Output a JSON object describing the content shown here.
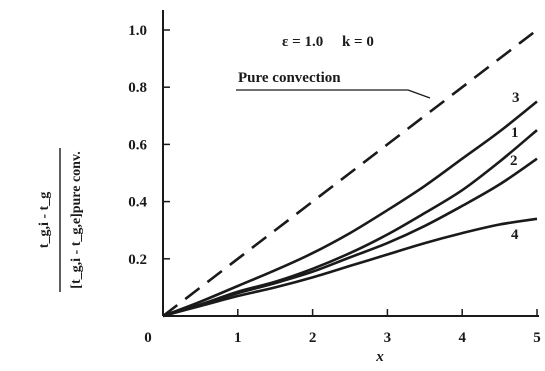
{
  "chart_data": {
    "type": "line",
    "xlabel": "x",
    "ylabel_numerator": "t_g,i - t_g",
    "ylabel_denominator": "[t_g,i - t_g,e]pure conv.",
    "xlim": [
      0,
      5
    ],
    "ylim": [
      0,
      1.0
    ],
    "x_ticks": [
      "0",
      "1",
      "2",
      "3",
      "4",
      "5"
    ],
    "y_ticks": [
      "0.2",
      "0.4",
      "0.6",
      "0.8",
      "1.0"
    ],
    "annotation_params": "ε = 1.0     k = 0",
    "grid": false,
    "series": [
      {
        "name": "Pure convection",
        "style": "dashed",
        "x": [
          0,
          1,
          2,
          3,
          4,
          5
        ],
        "y": [
          0,
          0.2,
          0.4,
          0.6,
          0.8,
          1.0
        ]
      },
      {
        "name": "3",
        "style": "solid",
        "x": [
          0,
          0.5,
          1,
          1.5,
          2,
          2.5,
          3,
          3.5,
          4,
          4.5,
          5
        ],
        "y": [
          0,
          0.05,
          0.105,
          0.16,
          0.22,
          0.29,
          0.37,
          0.455,
          0.55,
          0.645,
          0.75
        ]
      },
      {
        "name": "1",
        "style": "solid",
        "x": [
          0,
          0.5,
          1,
          1.5,
          2,
          2.5,
          3,
          3.5,
          4,
          4.5,
          5
        ],
        "y": [
          0,
          0.04,
          0.085,
          0.12,
          0.165,
          0.22,
          0.285,
          0.36,
          0.44,
          0.54,
          0.65
        ]
      },
      {
        "name": "2",
        "style": "solid",
        "x": [
          0,
          0.5,
          1,
          1.5,
          2,
          2.5,
          3,
          3.5,
          4,
          4.5,
          5
        ],
        "y": [
          0,
          0.04,
          0.08,
          0.115,
          0.155,
          0.205,
          0.255,
          0.315,
          0.385,
          0.46,
          0.55
        ]
      },
      {
        "name": "4",
        "style": "solid",
        "x": [
          0,
          0.5,
          1,
          1.5,
          2,
          2.5,
          3,
          3.5,
          4,
          4.5,
          5
        ],
        "y": [
          0,
          0.035,
          0.07,
          0.1,
          0.135,
          0.175,
          0.215,
          0.255,
          0.29,
          0.32,
          0.34
        ]
      }
    ]
  }
}
